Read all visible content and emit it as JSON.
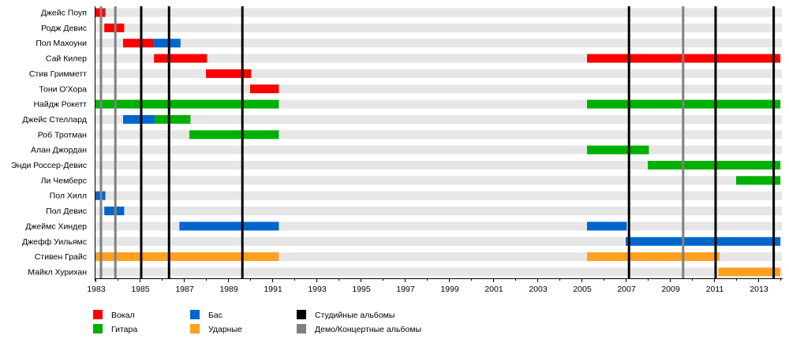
{
  "chart_data": {
    "type": "timeline",
    "title": "",
    "xlim": [
      1983,
      2014
    ],
    "x_ticks": [
      "1983",
      "1985",
      "1987",
      "1989",
      "1991",
      "1993",
      "1995",
      "1997",
      "1999",
      "2001",
      "2003",
      "2005",
      "2007",
      "2009",
      "2011",
      "2013"
    ],
    "colors": {
      "vocal": "#ff0000",
      "guitar": "#00b000",
      "bass": "#0066cc",
      "drums": "#ffa020",
      "studio": "#000000",
      "demo": "#808080",
      "stripe": "#e6e6e6"
    },
    "members": [
      {
        "name": "Джейс Поуп",
        "spans": [
          {
            "role": "vocal",
            "start": 1983.0,
            "end": 1983.45
          }
        ]
      },
      {
        "name": "Родж Девис",
        "spans": [
          {
            "role": "vocal",
            "start": 1983.4,
            "end": 1984.3
          }
        ]
      },
      {
        "name": "Пол Махоуни",
        "spans": [
          {
            "role": "vocal",
            "start": 1984.25,
            "end": 1985.65
          },
          {
            "role": "bass",
            "start": 1985.65,
            "end": 1986.85
          }
        ]
      },
      {
        "name": "Сай Килер",
        "spans": [
          {
            "role": "vocal",
            "start": 1985.65,
            "end": 1988.05
          },
          {
            "role": "vocal",
            "start": 2005.25,
            "end": 2014
          }
        ]
      },
      {
        "name": "Стив Гримметт",
        "spans": [
          {
            "role": "vocal",
            "start": 1988.0,
            "end": 1990.05
          }
        ]
      },
      {
        "name": "Тони О'Хора",
        "spans": [
          {
            "role": "vocal",
            "start": 1990.0,
            "end": 1991.3
          }
        ]
      },
      {
        "name": "Найдж Рокетт",
        "spans": [
          {
            "role": "guitar",
            "start": 1983.0,
            "end": 1991.3
          },
          {
            "role": "guitar",
            "start": 2005.25,
            "end": 2014
          }
        ]
      },
      {
        "name": "Джейс Стеллард",
        "spans": [
          {
            "role": "bass",
            "start": 1984.25,
            "end": 1985.7
          },
          {
            "role": "guitar",
            "start": 1985.7,
            "end": 1987.3
          }
        ]
      },
      {
        "name": "Роб Тротман",
        "spans": [
          {
            "role": "guitar",
            "start": 1987.25,
            "end": 1991.3
          }
        ]
      },
      {
        "name": "Алан Джордан",
        "spans": [
          {
            "role": "guitar",
            "start": 2005.25,
            "end": 2008.05
          }
        ]
      },
      {
        "name": "Энди Россер-Девис",
        "spans": [
          {
            "role": "guitar",
            "start": 2008.0,
            "end": 2014
          }
        ]
      },
      {
        "name": "Ли Чемберс",
        "spans": [
          {
            "role": "guitar",
            "start": 2012.0,
            "end": 2014
          }
        ]
      },
      {
        "name": "Пол Хилл",
        "spans": [
          {
            "role": "bass",
            "start": 1983.0,
            "end": 1983.45
          }
        ]
      },
      {
        "name": "Пол Девис",
        "spans": [
          {
            "role": "bass",
            "start": 1983.4,
            "end": 1984.3
          }
        ]
      },
      {
        "name": "Джеймс Хиндер",
        "spans": [
          {
            "role": "bass",
            "start": 1986.8,
            "end": 1991.3
          },
          {
            "role": "bass",
            "start": 2005.25,
            "end": 2007.05
          }
        ]
      },
      {
        "name": "Джефф Уильямс",
        "spans": [
          {
            "role": "bass",
            "start": 2007.0,
            "end": 2014
          }
        ]
      },
      {
        "name": "Стивен Грайс",
        "spans": [
          {
            "role": "drums",
            "start": 1983.0,
            "end": 1991.3
          },
          {
            "role": "drums",
            "start": 2005.25,
            "end": 2011.25
          }
        ]
      },
      {
        "name": "Майкл Хурихан",
        "spans": [
          {
            "role": "drums",
            "start": 2011.2,
            "end": 2014
          }
        ]
      }
    ],
    "album_lines": [
      {
        "type": "demo",
        "year": 1983.25
      },
      {
        "type": "demo",
        "year": 1983.9
      },
      {
        "type": "studio",
        "year": 1985.07
      },
      {
        "type": "studio",
        "year": 1986.33
      },
      {
        "type": "studio",
        "year": 1989.65
      },
      {
        "type": "studio",
        "year": 2007.15
      },
      {
        "type": "demo",
        "year": 2009.6
      },
      {
        "type": "studio",
        "year": 2011.07
      },
      {
        "type": "studio",
        "year": 2013.7
      }
    ],
    "legend": [
      {
        "key": "vocal",
        "label": "Вокал"
      },
      {
        "key": "guitar",
        "label": "Гитара"
      },
      {
        "key": "bass",
        "label": "Бас"
      },
      {
        "key": "drums",
        "label": "Ударные"
      },
      {
        "key": "studio",
        "label": "Студийные альбомы"
      },
      {
        "key": "demo",
        "label": "Демо/Концертные альбомы"
      }
    ],
    "legend_placement": "bottom"
  }
}
